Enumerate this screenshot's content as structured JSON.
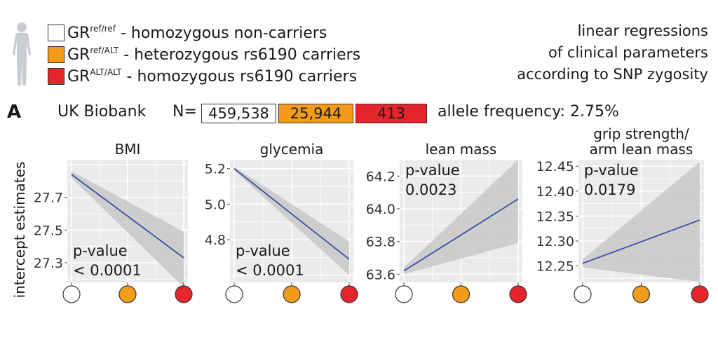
{
  "legend": [
    {
      "swatch_color": "#ffffff",
      "prefix": "GR",
      "sup": "ref/ref",
      "suffix": " - homozygous non-carriers"
    },
    {
      "swatch_color": "#f39c1b",
      "prefix": "GR",
      "sup": "ref/ALT",
      "suffix": " - heterozygous rs6190 carriers"
    },
    {
      "swatch_color": "#e3262b",
      "prefix": "GR",
      "sup": "ALT/ALT",
      "suffix": " - homozygous rs6190 carriers"
    }
  ],
  "note_lines": [
    "linear regressions",
    "of clinical parameters",
    "according to SNP zygosity"
  ],
  "panel_letter": "A",
  "cohort": "UK Biobank",
  "n_label": "N=",
  "counts": [
    "459,538",
    "25,944",
    "413"
  ],
  "allele_frequency": "allele frequency: 2.75%",
  "y_axis_label": "intercept estimates",
  "colors": {
    "ref_ref": "#ffffff",
    "ref_alt": "#f39c1b",
    "alt_alt": "#e3262b",
    "line": "#3a4fa3",
    "band": "#c8c8c8",
    "panel_bg": "#ebebeb"
  },
  "chart_data": [
    {
      "type": "line",
      "title": "BMI",
      "categories": [
        "GRref/ref",
        "GRref/ALT",
        "GRALT/ALT"
      ],
      "x": [
        0,
        2
      ],
      "y": [
        27.84,
        27.33
      ],
      "ci_lower": [
        27.82,
        27.15
      ],
      "ci_upper": [
        27.86,
        27.49
      ],
      "ylim": [
        27.18,
        27.93
      ],
      "yticks": [
        27.3,
        27.5,
        27.7
      ],
      "ytick_labels": [
        "27.3",
        "27.5",
        "27.7"
      ],
      "pvalue": [
        "p-value",
        "< 0.0001"
      ],
      "pvalue_pos": "bottom-left"
    },
    {
      "type": "line",
      "title": "glycemia",
      "categories": [
        "GRref/ref",
        "GRref/ALT",
        "GRALT/ALT"
      ],
      "x": [
        0,
        2
      ],
      "y": [
        5.2,
        4.69
      ],
      "ci_lower": [
        5.19,
        4.6
      ],
      "ci_upper": [
        5.21,
        4.79
      ],
      "ylim": [
        4.56,
        5.25
      ],
      "yticks": [
        4.8,
        5.0,
        5.2
      ],
      "ytick_labels": [
        "4.8",
        "5.0",
        "5.2"
      ],
      "pvalue": [
        "p-value",
        "< 0.0001"
      ],
      "pvalue_pos": "bottom-left"
    },
    {
      "type": "line",
      "title": "lean mass",
      "categories": [
        "GRref/ref",
        "GRref/ALT",
        "GRALT/ALT"
      ],
      "x": [
        0,
        2
      ],
      "y": [
        63.62,
        64.06
      ],
      "ci_lower": [
        63.6,
        63.79
      ],
      "ci_upper": [
        63.64,
        64.3
      ],
      "ylim": [
        63.55,
        64.3
      ],
      "yticks": [
        63.6,
        63.8,
        64.0,
        64.2
      ],
      "ytick_labels": [
        "63.6",
        "63.8",
        "64.0",
        "64.2"
      ],
      "pvalue": [
        "p-value",
        "0.0023"
      ],
      "pvalue_pos": "top-left"
    },
    {
      "type": "line",
      "title": "grip strength/\narm lean mass",
      "categories": [
        "GRref/ref",
        "GRref/ALT",
        "GRALT/ALT"
      ],
      "x": [
        0,
        2
      ],
      "y": [
        12.255,
        12.342
      ],
      "ci_lower": [
        12.247,
        12.218
      ],
      "ci_upper": [
        12.263,
        12.459
      ],
      "ylim": [
        12.217,
        12.463
      ],
      "yticks": [
        12.25,
        12.3,
        12.35,
        12.4,
        12.45
      ],
      "ytick_labels": [
        "12.25",
        "12.30",
        "12.35",
        "12.40",
        "12.45"
      ],
      "pvalue": [
        "p-value",
        "0.0179"
      ],
      "pvalue_pos": "top-left"
    }
  ]
}
